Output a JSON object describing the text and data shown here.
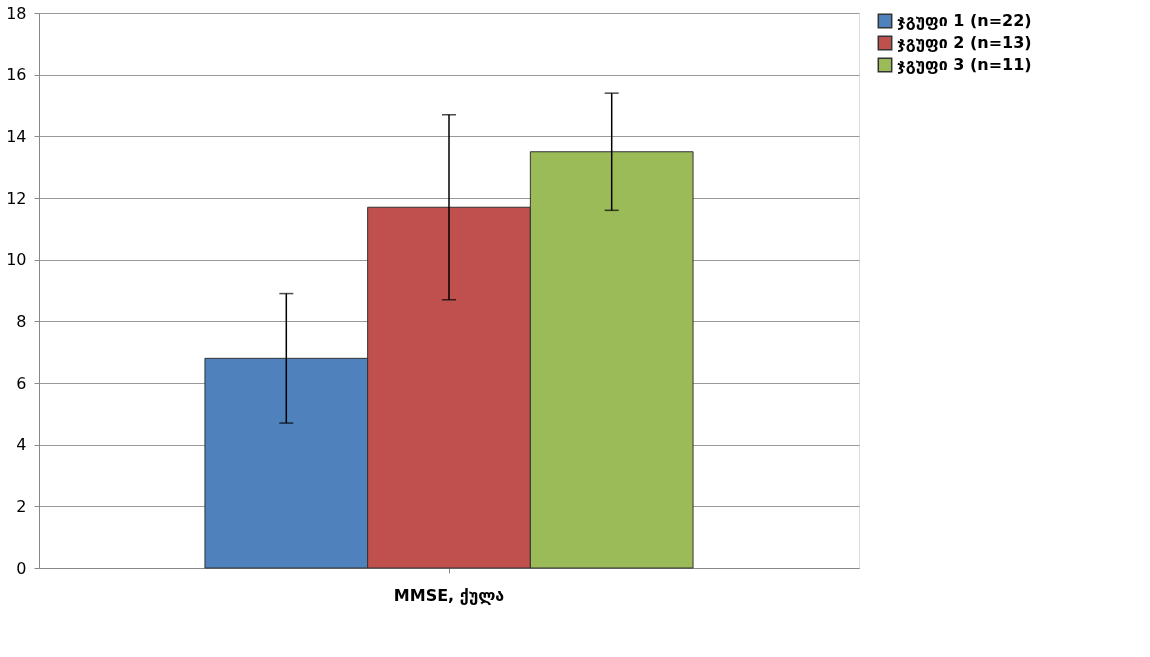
{
  "chart_data": {
    "type": "bar",
    "categories": [
      "MMSE, ქულა"
    ],
    "series": [
      {
        "name": "ჯგუფი 1 (n=22)",
        "color": "#4f81bd",
        "values": [
          6.8
        ],
        "errors": [
          [
            4.7,
            8.9
          ]
        ]
      },
      {
        "name": "ჯგუფი 2 (n=13)",
        "color": "#c0504d",
        "values": [
          11.7
        ],
        "errors": [
          [
            8.7,
            14.7
          ]
        ]
      },
      {
        "name": "ჯგუფი 3 (n=11)",
        "color": "#9bbb59",
        "values": [
          13.5
        ],
        "errors": [
          [
            11.6,
            15.4
          ]
        ]
      }
    ],
    "ylim": [
      0,
      18
    ],
    "yticks": [
      0,
      2,
      4,
      6,
      8,
      10,
      12,
      14,
      16,
      18
    ],
    "grid": "y",
    "legend": "right"
  }
}
